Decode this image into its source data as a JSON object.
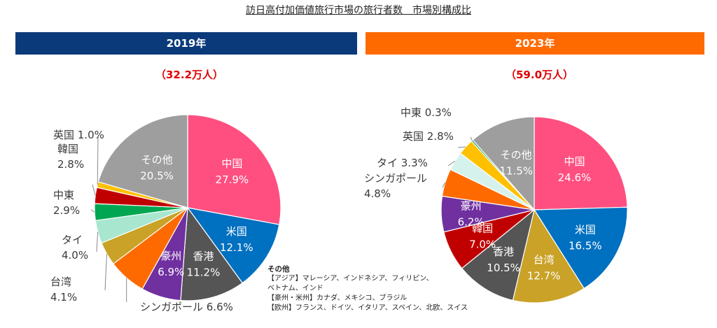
{
  "page_title": "訪日高付加価値旅行市場の旅行者数　市場別構成比",
  "chart_data": [
    {
      "type": "pie",
      "year_label": "2019年",
      "total_label": "（32.2万人）",
      "band_color": "#0b3a7a",
      "slices": [
        {
          "name": "中国",
          "value": 27.9,
          "value_label": "27.9%",
          "color": "#ff4f80"
        },
        {
          "name": "米国",
          "value": 12.1,
          "value_label": "12.1%",
          "color": "#0070c0"
        },
        {
          "name": "香港",
          "value": 11.2,
          "value_label": "11.2%",
          "color": "#555555"
        },
        {
          "name": "豪州",
          "value": 6.9,
          "value_label": "6.9%",
          "color": "#7030a0"
        },
        {
          "name": "シンガポール",
          "value": 6.6,
          "value_label": "6.6%",
          "color": "#ff6a00"
        },
        {
          "name": "台湾",
          "value": 4.1,
          "value_label": "4.1%",
          "color": "#c9a227"
        },
        {
          "name": "タイ",
          "value": 4.0,
          "value_label": "4.0%",
          "color": "#a8e6cf"
        },
        {
          "name": "中東",
          "value": 2.9,
          "value_label": "2.9%",
          "color": "#00a651"
        },
        {
          "name": "韓国",
          "value": 2.8,
          "value_label": "2.8%",
          "color": "#c00000"
        },
        {
          "name": "英国",
          "value": 1.0,
          "value_label": "1.0%",
          "color": "#ffc000"
        },
        {
          "name": "その他",
          "value": 20.5,
          "value_label": "20.5%",
          "color": "#9e9e9e"
        }
      ]
    },
    {
      "type": "pie",
      "year_label": "2023年",
      "total_label": "（59.0万人）",
      "band_color": "#ff6a00",
      "slices": [
        {
          "name": "中国",
          "value": 24.6,
          "value_label": "24.6%",
          "color": "#ff4f80"
        },
        {
          "name": "米国",
          "value": 16.5,
          "value_label": "16.5%",
          "color": "#0070c0"
        },
        {
          "name": "台湾",
          "value": 12.7,
          "value_label": "12.7%",
          "color": "#c9a227"
        },
        {
          "name": "香港",
          "value": 10.5,
          "value_label": "10.5%",
          "color": "#555555"
        },
        {
          "name": "韓国",
          "value": 7.0,
          "value_label": "7.0%",
          "color": "#c00000"
        },
        {
          "name": "豪州",
          "value": 6.2,
          "value_label": "6.2%",
          "color": "#7030a0"
        },
        {
          "name": "シンガポール",
          "value": 4.8,
          "value_label": "4.8%",
          "color": "#ff6a00"
        },
        {
          "name": "タイ",
          "value": 3.3,
          "value_label": "3.3%",
          "color": "#d6f2ec"
        },
        {
          "name": "英国",
          "value": 2.8,
          "value_label": "2.8%",
          "color": "#ffc000"
        },
        {
          "name": "中東",
          "value": 0.3,
          "value_label": "0.3%",
          "color": "#00a651"
        },
        {
          "name": "その他",
          "value": 11.5,
          "value_label": "11.5%",
          "color": "#9e9e9e"
        }
      ]
    }
  ],
  "note": {
    "title": "その他",
    "lines": [
      "【アジア】マレーシア、インドネシア、フィリピン、",
      "ベトナム、インド",
      "【豪州・米州】カナダ、メキシコ、ブラジル",
      "【欧州】フランス、ドイツ、イタリア、スペイン、北欧、スイス"
    ]
  }
}
